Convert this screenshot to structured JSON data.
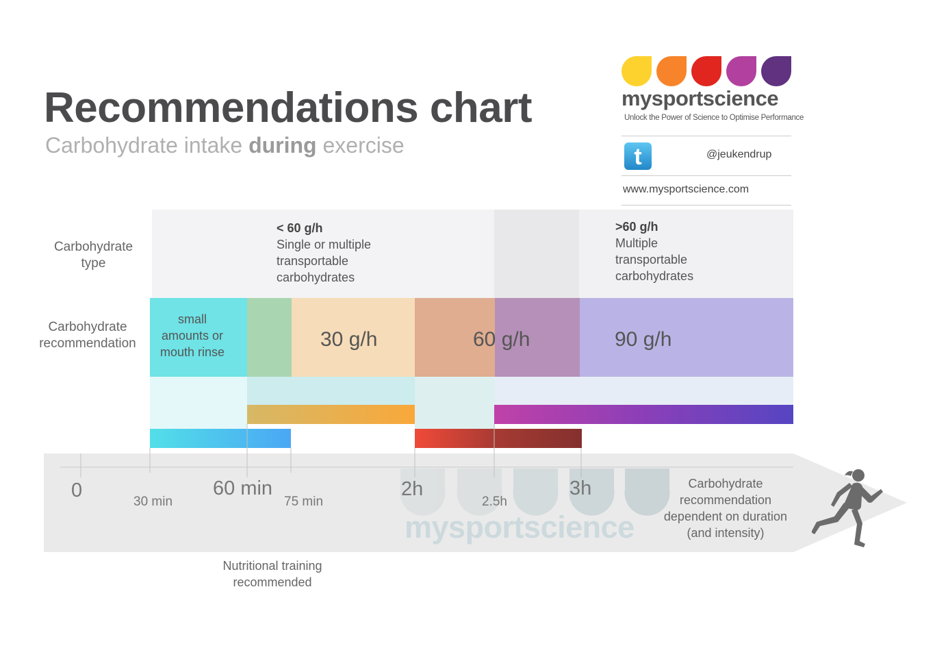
{
  "header": {
    "title": "Recommendations chart",
    "subtitle_pre": "Carbohydrate intake ",
    "subtitle_bold": "during",
    "subtitle_post": " exercise"
  },
  "brand": {
    "name": "mysportscience",
    "tagline": "Unlock the Power of Science to Optimise Performance",
    "twitter_handle": "@jeukendrup",
    "website": "www.mysportscience.com",
    "drop_colors": [
      "#fdd22e",
      "#f7842a",
      "#e0261f",
      "#b1409f",
      "#60327f"
    ]
  },
  "row_labels": {
    "type_line1": "Carbohydrate",
    "type_line2": "type",
    "rec_line1": "Carbohydrate",
    "rec_line2": "recommendation"
  },
  "types": {
    "low_heading": "< 60 g/h",
    "low_lines": [
      "Single or multiple",
      "transportable",
      "carbohydrates"
    ],
    "high_heading": ">60 g/h",
    "high_lines": [
      "Multiple",
      "transportable",
      "carbohydrates"
    ]
  },
  "recommendations": {
    "small_lines": [
      "small",
      "amounts or",
      "mouth rinse"
    ],
    "r30": "30 g/h",
    "r60": "60 g/h",
    "r90": "90 g/h"
  },
  "axis": {
    "t0": "0",
    "t30": "30 min",
    "t60": "60 min",
    "t75": "75 min",
    "t2h": "2h",
    "t25h": "2.5h",
    "t3h": "3h",
    "note_lines": [
      "Carbohydrate",
      "recommendation",
      "dependent on duration",
      "(and intensity)"
    ],
    "watermark": "mysportscience"
  },
  "footnote": {
    "line1": "Nutritional training",
    "line2": "recommended"
  },
  "colors": {
    "cyan": "#6fe3e6",
    "green": "#a9d6b0",
    "peach": "#f6dcb8",
    "salmon": "#e0ad90",
    "mauve": "#b690b8",
    "lavender": "#bab4e6"
  }
}
